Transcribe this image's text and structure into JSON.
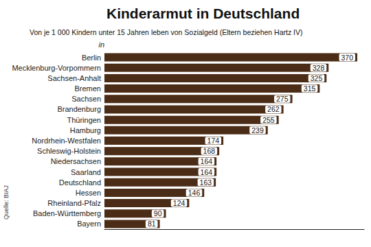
{
  "chart_data": {
    "type": "bar",
    "orientation": "horizontal",
    "title": "Kinderarmut in Deutschland",
    "subtitle": "Von je 1 000 Kindern unter 15 Jahren leben von Sozialgeld (Eltern beziehen Hartz IV)",
    "y_label": "in",
    "source": "Quelle: BIAJ",
    "categories": [
      "Berlin",
      "Mecklenburg-Vorpommern",
      "Sachsen-Anhalt",
      "Bremen",
      "Sachsen",
      "Brandenburg",
      "Thüringen",
      "Hamburg",
      "Nordrhein-Westfalen",
      "Schleswig-Holstein",
      "Niedersachsen",
      "Saarland",
      "Deutschland",
      "Hessen",
      "Rheinland-Pfalz",
      "Baden-Württemberg",
      "Bayern"
    ],
    "values": [
      370,
      328,
      325,
      315,
      275,
      262,
      255,
      239,
      174,
      168,
      164,
      164,
      163,
      146,
      124,
      90,
      81
    ],
    "color": "#4b2d17",
    "xlim": [
      0,
      380
    ],
    "xticks": [],
    "grid": false,
    "data_labels": true,
    "tick_labels": false
  }
}
